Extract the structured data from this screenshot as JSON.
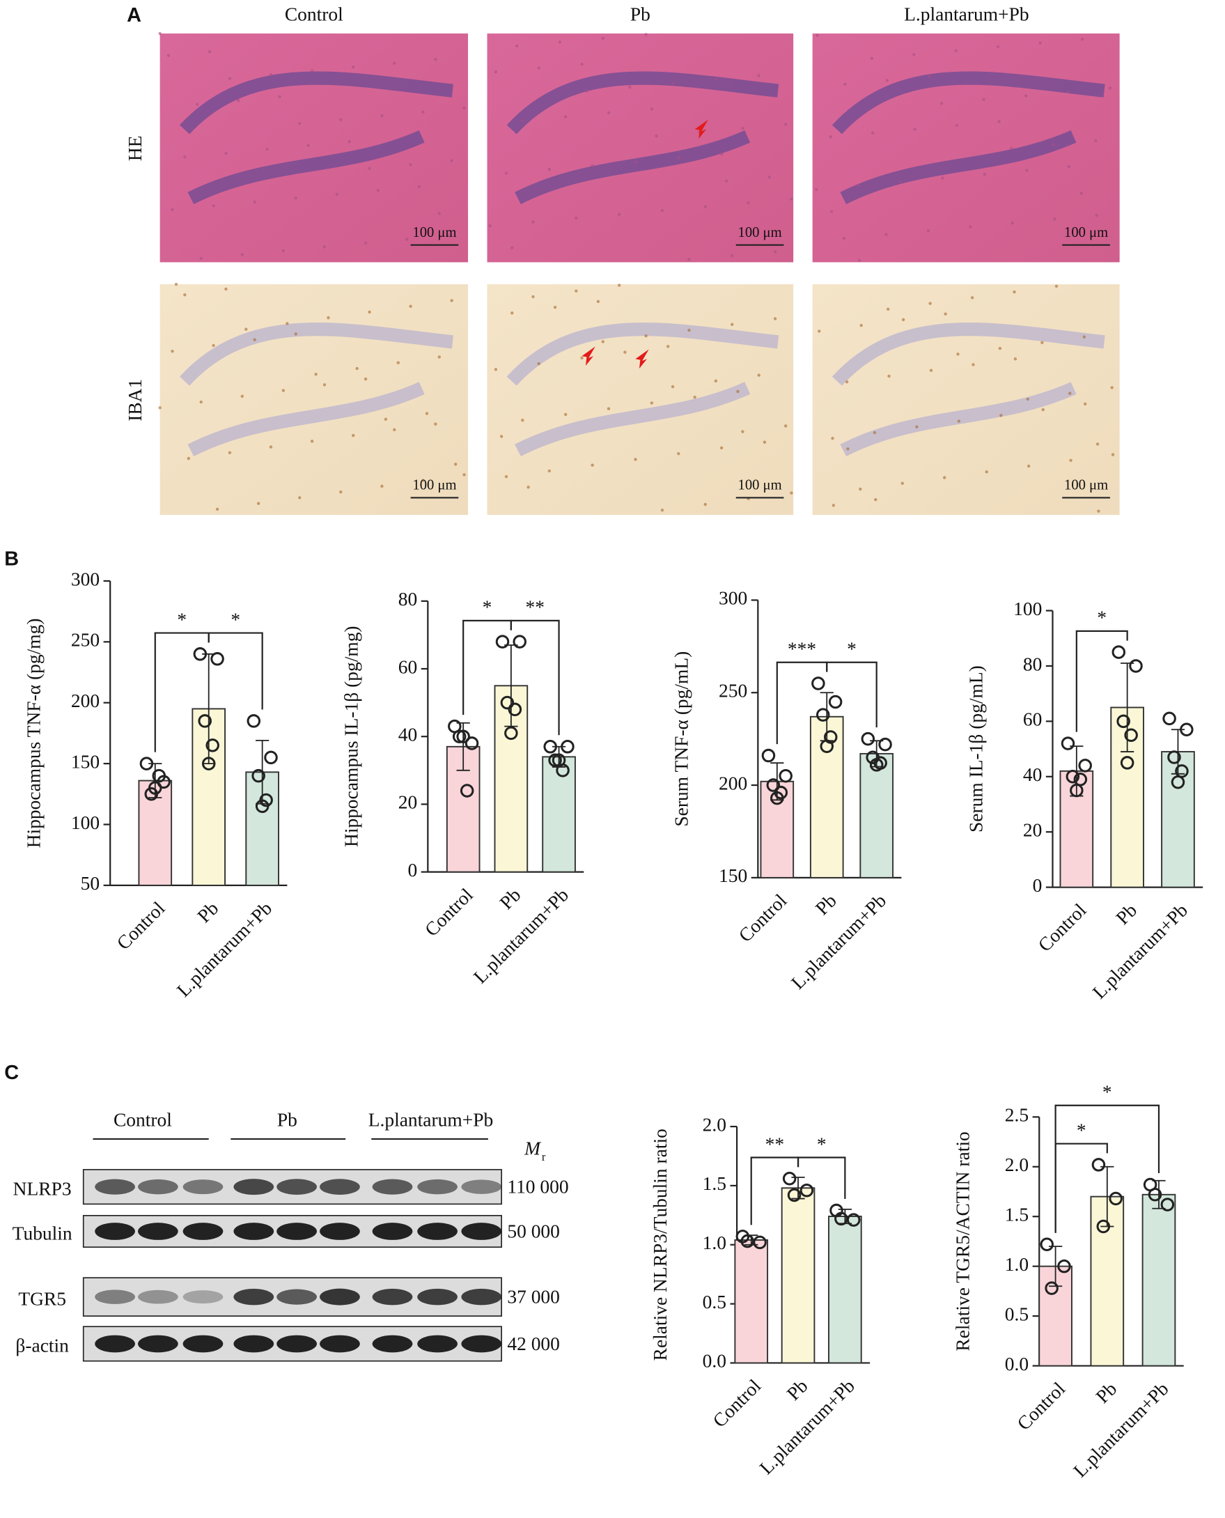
{
  "panels": {
    "a": "A",
    "b": "B",
    "c": "C"
  },
  "histology": {
    "columns": [
      "Control",
      "Pb",
      "L.plantarum+Pb"
    ],
    "rows": [
      "HE",
      "IBA1"
    ],
    "scale_bar": "100 μm"
  },
  "western_blot": {
    "groups": [
      "Control",
      "Pb",
      "L.plantarum+Pb"
    ],
    "mr_label": "M",
    "mr_sub": "r",
    "bands": [
      {
        "name": "NLRP3",
        "mr": "110 000"
      },
      {
        "name": "Tubulin",
        "mr": "50 000"
      },
      {
        "name": "TGR5",
        "mr": "37 000"
      },
      {
        "name": "β-actin",
        "mr": "42 000"
      }
    ]
  },
  "chart_data": [
    {
      "type": "bar",
      "ylabel": "Hippocampus TNF-α (pg/mg)",
      "categories": [
        "Control",
        "Pb",
        "L.plantarum+Pb"
      ],
      "values": [
        136,
        195,
        143
      ],
      "errors": [
        14,
        45,
        26
      ],
      "points": [
        [
          150,
          135,
          125,
          140,
          130
        ],
        [
          240,
          236,
          185,
          165,
          150
        ],
        [
          185,
          155,
          140,
          120,
          115
        ]
      ],
      "colors": [
        "#f9d5d9",
        "#fbf7d6",
        "#d3e7dc"
      ],
      "ylim": [
        50,
        300
      ],
      "yticks": [
        50,
        100,
        150,
        200,
        250,
        300
      ],
      "significance": [
        {
          "between": [
            0,
            1
          ],
          "label": "*"
        },
        {
          "between": [
            1,
            2
          ],
          "label": "*"
        }
      ]
    },
    {
      "type": "bar",
      "ylabel": "Hippocampus IL-1β (pg/mg)",
      "categories": [
        "Control",
        "Pb",
        "L.plantarum+Pb"
      ],
      "values": [
        37,
        55,
        34
      ],
      "errors": [
        7,
        12,
        3
      ],
      "points": [
        [
          43,
          38,
          40,
          24,
          40
        ],
        [
          68,
          68,
          50,
          48,
          41
        ],
        [
          37,
          37,
          33,
          30,
          33
        ]
      ],
      "colors": [
        "#f9d5d9",
        "#fbf7d6",
        "#d3e7dc"
      ],
      "ylim": [
        0,
        80
      ],
      "yticks": [
        0,
        20,
        40,
        60,
        80
      ],
      "significance": [
        {
          "between": [
            0,
            1
          ],
          "label": "*"
        },
        {
          "between": [
            1,
            2
          ],
          "label": "**"
        }
      ]
    },
    {
      "type": "bar",
      "ylabel": "Serum TNF-α (pg/mL)",
      "categories": [
        "Control",
        "Pb",
        "L.plantarum+Pb"
      ],
      "values": [
        202,
        237,
        217
      ],
      "errors": [
        10,
        13,
        7
      ],
      "points": [
        [
          216,
          205,
          200,
          196,
          193
        ],
        [
          255,
          245,
          238,
          226,
          221
        ],
        [
          225,
          222,
          215,
          212,
          211
        ]
      ],
      "colors": [
        "#f9d5d9",
        "#fbf7d6",
        "#d3e7dc"
      ],
      "ylim": [
        150,
        300
      ],
      "yticks": [
        150,
        200,
        250,
        300
      ],
      "significance": [
        {
          "between": [
            0,
            1
          ],
          "label": "***"
        },
        {
          "between": [
            1,
            2
          ],
          "label": "*"
        }
      ]
    },
    {
      "type": "bar",
      "ylabel": "Serum IL-1β (pg/mL)",
      "categories": [
        "Control",
        "Pb",
        "L.plantarum+Pb"
      ],
      "values": [
        42,
        65,
        49
      ],
      "errors": [
        9,
        16,
        8
      ],
      "points": [
        [
          52,
          44,
          40,
          39,
          35
        ],
        [
          85,
          80,
          60,
          55,
          45
        ],
        [
          61,
          57,
          47,
          42,
          38
        ]
      ],
      "colors": [
        "#f9d5d9",
        "#fbf7d6",
        "#d3e7dc"
      ],
      "ylim": [
        0,
        100
      ],
      "yticks": [
        0,
        20,
        40,
        60,
        80,
        100
      ],
      "significance": [
        {
          "between": [
            0,
            1
          ],
          "label": "*"
        }
      ]
    },
    {
      "type": "bar",
      "ylabel": "Relative NLRP3/Tubulin ratio",
      "categories": [
        "Control",
        "Pb",
        "L.plantarum+Pb"
      ],
      "values": [
        1.04,
        1.48,
        1.24
      ],
      "errors": [
        0.04,
        0.09,
        0.06
      ],
      "points": [
        [
          1.07,
          1.02,
          1.03
        ],
        [
          1.56,
          1.46,
          1.42
        ],
        [
          1.29,
          1.21,
          1.22
        ]
      ],
      "colors": [
        "#f9d5d9",
        "#fbf7d6",
        "#d3e7dc"
      ],
      "ylim": [
        0,
        2
      ],
      "yticks": [
        {
          "value": 0,
          "label": "0.0"
        },
        0.5,
        {
          "value": 1,
          "label": "1.0"
        },
        1.5,
        {
          "value": 2,
          "label": "2.0"
        }
      ],
      "significance": [
        {
          "between": [
            0,
            1
          ],
          "label": "**"
        },
        {
          "between": [
            1,
            2
          ],
          "label": "*"
        }
      ]
    },
    {
      "type": "bar",
      "ylabel": "Relative TGR5/ACTIN ratio",
      "categories": [
        "Control",
        "Pb",
        "L.plantarum+Pb"
      ],
      "values": [
        1.0,
        1.7,
        1.72
      ],
      "errors": [
        0.2,
        0.3,
        0.14
      ],
      "points": [
        [
          1.22,
          1.0,
          0.78
        ],
        [
          2.02,
          1.68,
          1.4
        ],
        [
          1.82,
          1.62,
          1.72
        ]
      ],
      "colors": [
        "#f9d5d9",
        "#fbf7d6",
        "#d3e7dc"
      ],
      "ylim": [
        0,
        2.5
      ],
      "yticks": [
        {
          "value": 0,
          "label": "0.0"
        },
        0.5,
        {
          "value": 1,
          "label": "1.0"
        },
        1.5,
        {
          "value": 2,
          "label": "2.0"
        },
        2.5
      ],
      "significance": [
        {
          "between": [
            0,
            1
          ],
          "label": "*"
        },
        {
          "between": [
            0,
            2
          ],
          "label": "*"
        }
      ]
    }
  ]
}
